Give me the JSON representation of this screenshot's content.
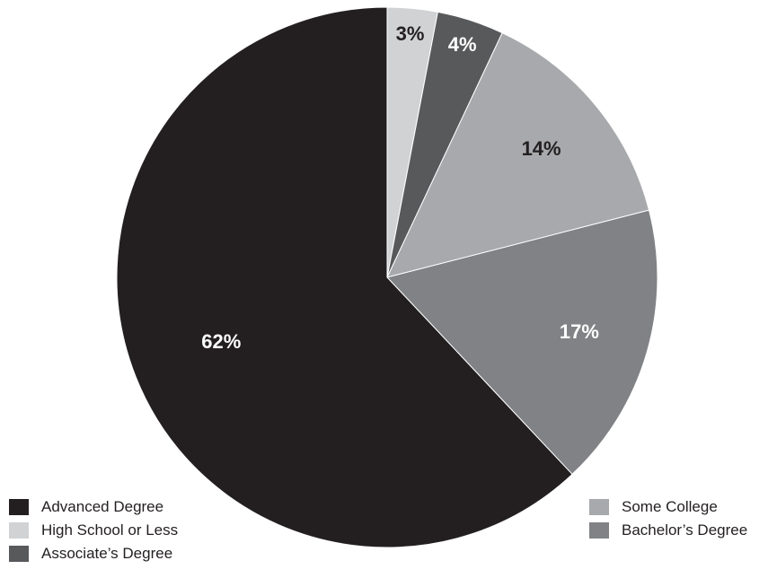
{
  "chart_data": {
    "type": "pie",
    "title": "",
    "slices": [
      {
        "name": "High School or Less",
        "value": 3,
        "label": "3%",
        "color": "#d1d2d4",
        "label_color": "#231f20"
      },
      {
        "name": "Associate's Degree",
        "value": 4,
        "label": "4%",
        "color": "#58595b",
        "label_color": "#ffffff"
      },
      {
        "name": "Some College",
        "value": 14,
        "label": "14%",
        "color": "#a7a9ac",
        "label_color": "#231f20"
      },
      {
        "name": "Bachelor's Degree",
        "value": 17,
        "label": "17%",
        "color": "#808285",
        "label_color": "#ffffff"
      },
      {
        "name": "Advanced Degree",
        "value": 62,
        "label": "62%",
        "color": "#231f20",
        "label_color": "#ffffff"
      }
    ],
    "start_angle_deg": 0,
    "direction": "clockwise",
    "legend_placement": "bottom-left and bottom-right"
  },
  "legend": {
    "left": [
      {
        "label": "Advanced Degree",
        "color": "#231f20"
      },
      {
        "label": "High School or Less",
        "color": "#d1d2d4"
      },
      {
        "label": "Associate’s Degree",
        "color": "#58595b"
      }
    ],
    "right": [
      {
        "label": "Some College",
        "color": "#a7a9ac"
      },
      {
        "label": "Bachelor’s Degree",
        "color": "#808285"
      }
    ]
  }
}
